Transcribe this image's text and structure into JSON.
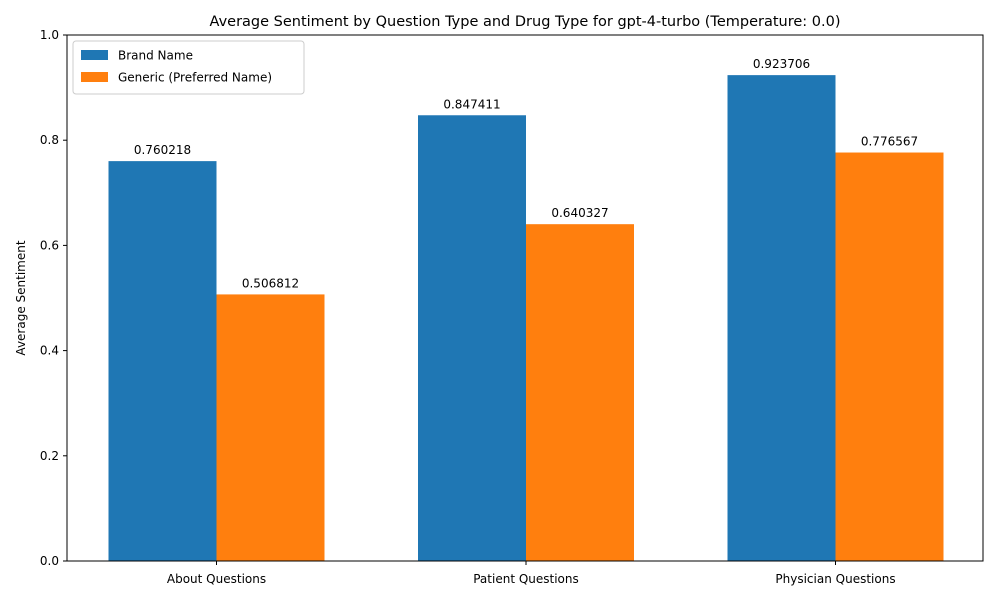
{
  "chart_data": {
    "type": "bar",
    "title": "Average Sentiment by Question Type and Drug Type for gpt-4-turbo (Temperature: 0.0)",
    "xlabel": "",
    "ylabel": "Average Sentiment",
    "ylim": [
      0,
      1.0
    ],
    "yticks": [
      "0.0",
      "0.2",
      "0.4",
      "0.6",
      "0.8",
      "1.0"
    ],
    "categories": [
      "About Questions",
      "Patient Questions",
      "Physician Questions"
    ],
    "series": [
      {
        "name": "Brand Name",
        "color": "#1f77b4",
        "values": [
          0.760218,
          0.847411,
          0.923706
        ]
      },
      {
        "name": "Generic (Preferred Name)",
        "color": "#ff7f0e",
        "values": [
          0.506812,
          0.640327,
          0.776567
        ]
      }
    ],
    "grid": false,
    "legend_position": "top-left"
  }
}
